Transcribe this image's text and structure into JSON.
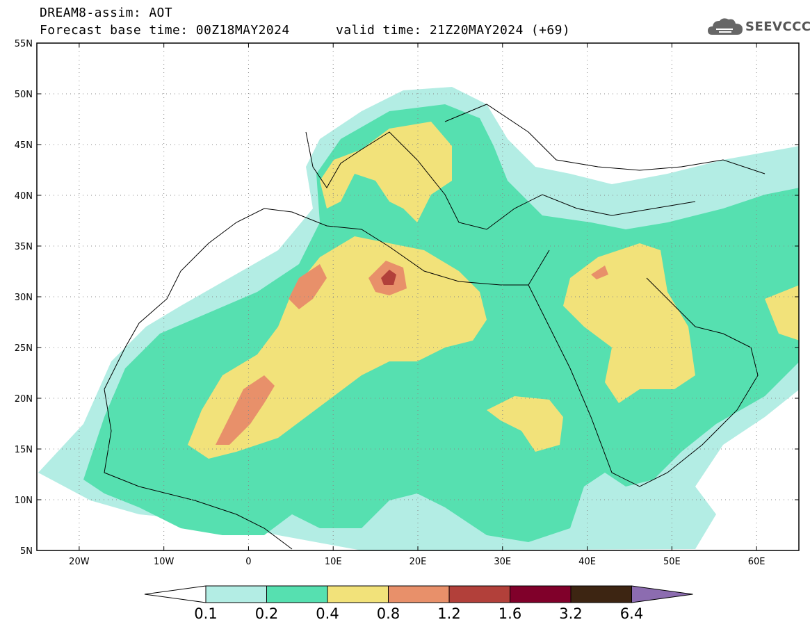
{
  "header": {
    "title": "DREAM8-assim: AOT",
    "base_time": "Forecast base time: 00Z18MAY2024",
    "valid_time": "valid time: 21Z20MAY2024 (+69)"
  },
  "logo": {
    "text": "SEEVCCC",
    "icon": "cloud-logo-icon",
    "color": "#555555"
  },
  "map": {
    "lon_range": [
      -25,
      65
    ],
    "lat_range": [
      5,
      55
    ],
    "lon_ticks": [
      {
        "v": -20,
        "label": "20W"
      },
      {
        "v": -10,
        "label": "10W"
      },
      {
        "v": 0,
        "label": "0"
      },
      {
        "v": 10,
        "label": "10E"
      },
      {
        "v": 20,
        "label": "20E"
      },
      {
        "v": 30,
        "label": "30E"
      },
      {
        "v": 40,
        "label": "40E"
      },
      {
        "v": 50,
        "label": "50E"
      },
      {
        "v": 60,
        "label": "60E"
      }
    ],
    "lat_ticks": [
      {
        "v": 55,
        "label": "55N"
      },
      {
        "v": 50,
        "label": "50N"
      },
      {
        "v": 45,
        "label": "45N"
      },
      {
        "v": 40,
        "label": "40N"
      },
      {
        "v": 35,
        "label": "35N"
      },
      {
        "v": 30,
        "label": "30N"
      },
      {
        "v": 25,
        "label": "25N"
      },
      {
        "v": 20,
        "label": "20N"
      },
      {
        "v": 15,
        "label": "15N"
      },
      {
        "v": 10,
        "label": "10N"
      },
      {
        "v": 5,
        "label": "5N"
      }
    ],
    "grid": "dotted"
  },
  "colorbar": {
    "colors": [
      "#b3ede4",
      "#56e0b0",
      "#f2e27a",
      "#e8906a",
      "#b2403a",
      "#80002a",
      "#3d2512",
      "#8c6cb0"
    ],
    "labels": [
      "0.1",
      "0.2",
      "0.4",
      "0.8",
      "1.2",
      "1.6",
      "3.2",
      "6.4"
    ]
  }
}
